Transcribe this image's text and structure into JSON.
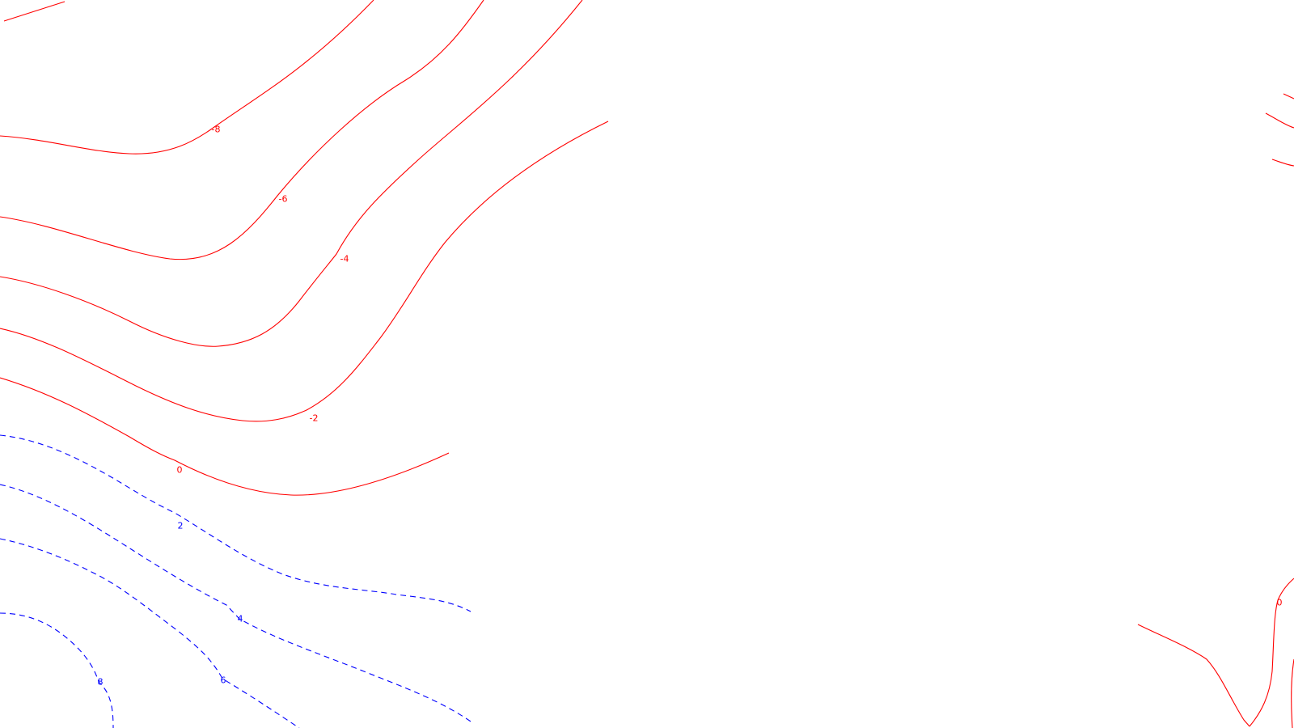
{
  "map": {
    "colors": {
      "negative": "#ff0000",
      "positive": "#0000ff",
      "background": "#ffffff"
    },
    "line_styles": {
      "negative": "solid",
      "positive": "dashed"
    },
    "contour_labels": {
      "neg8": "-8",
      "neg6": "-6",
      "neg4": "-4",
      "neg2": "-2",
      "zero_left": "0",
      "pos2": "2",
      "pos4": "4",
      "pos6": "6",
      "pos8": "8",
      "zero_right": "0"
    }
  }
}
